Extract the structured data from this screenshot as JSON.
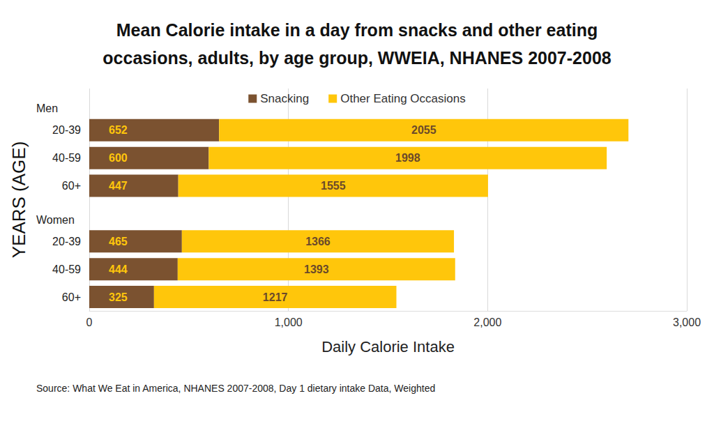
{
  "chart_data": {
    "type": "bar",
    "title": "Mean Calorie intake in a day from snacks and other eating\noccasions, adults, by age group, WWEIA, NHANES 2007-2008",
    "orientation": "horizontal",
    "stacked": true,
    "data_labels": true,
    "grid": true,
    "legend": "top",
    "x_label": "Daily Calorie Intake",
    "y_label": "YEARS (AGE)",
    "groups": [
      "Men",
      "Women"
    ],
    "categories": [
      null,
      "20-39",
      "40-59",
      "60+",
      null,
      "20-39",
      "40-59",
      "60+"
    ],
    "series": [
      {
        "name": "Snacking",
        "color": "#7b5230",
        "values": [
          null,
          652,
          600,
          447,
          null,
          465,
          444,
          325
        ]
      },
      {
        "name": "Other Eating Occasions",
        "color": "#ffc60b",
        "values": [
          null,
          2055,
          1998,
          1555,
          null,
          1366,
          1393,
          1217
        ]
      }
    ],
    "xlim": [
      0,
      3000
    ],
    "xticks": [
      0,
      {
        "value": 1000,
        "label": "1,000"
      },
      {
        "value": 2000,
        "label": "2,000"
      },
      {
        "value": 3000,
        "label": "3,000"
      }
    ],
    "annotations": [
      "Source: What We Eat in America, NHANES 2007-2008, Day 1 dietary intake Data, Weighted"
    ]
  }
}
